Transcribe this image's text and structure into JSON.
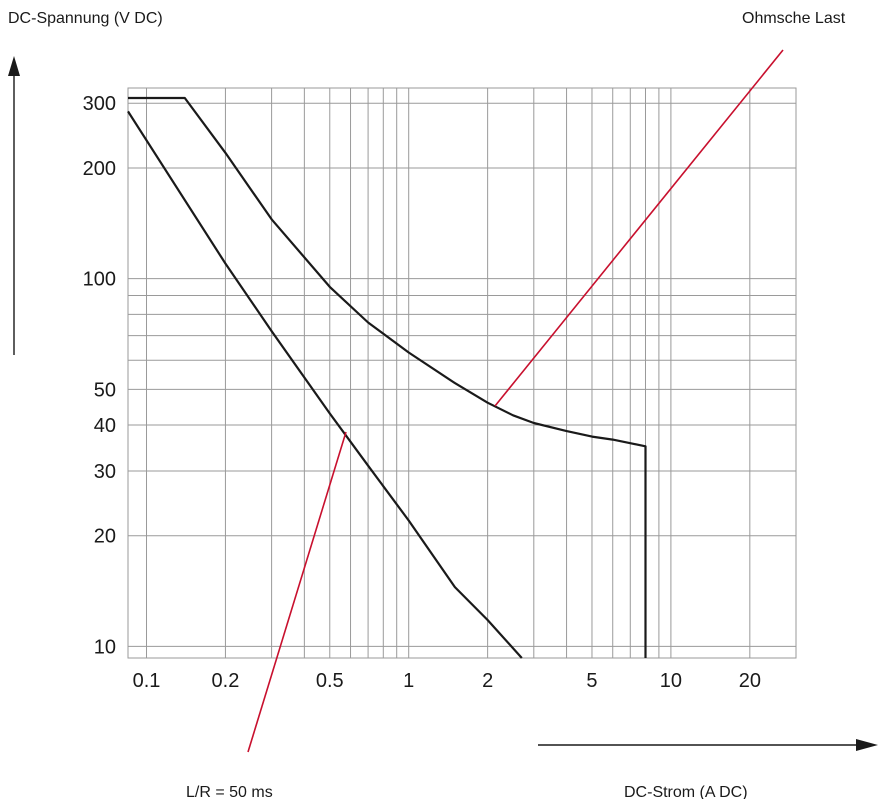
{
  "chart_data": {
    "type": "line",
    "xscale": "log",
    "yscale": "log",
    "xlim": [
      0.085,
      30
    ],
    "ylim": [
      9.3,
      330
    ],
    "ylabel": "DC-Spannung (V DC)",
    "xlabel": "DC-Strom (A DC)",
    "x_ticks": [
      {
        "value": 0.1,
        "label": "0.1"
      },
      {
        "value": 0.2,
        "label": "0.2"
      },
      {
        "value": 0.5,
        "label": "0.5"
      },
      {
        "value": 1,
        "label": "1"
      },
      {
        "value": 2,
        "label": "2"
      },
      {
        "value": 5,
        "label": "5"
      },
      {
        "value": 10,
        "label": "10"
      },
      {
        "value": 20,
        "label": "20"
      }
    ],
    "y_ticks": [
      {
        "value": 10,
        "label": "10"
      },
      {
        "value": 20,
        "label": "20"
      },
      {
        "value": 30,
        "label": "30"
      },
      {
        "value": 40,
        "label": "40"
      },
      {
        "value": 50,
        "label": "50"
      },
      {
        "value": 100,
        "label": "100"
      },
      {
        "value": 200,
        "label": "200"
      },
      {
        "value": 300,
        "label": "300"
      }
    ],
    "grid": true,
    "x_grid": [
      0.1,
      0.2,
      0.3,
      0.4,
      0.5,
      0.6,
      0.7,
      0.8,
      0.9,
      1,
      2,
      3,
      4,
      5,
      6,
      7,
      8,
      9,
      10,
      20
    ],
    "y_grid": [
      10,
      20,
      30,
      40,
      50,
      60,
      70,
      80,
      90,
      100,
      200,
      300
    ],
    "series": [
      {
        "name": "Ohmsche Last",
        "points": [
          [
            0.085,
            310
          ],
          [
            0.14,
            310
          ],
          [
            0.2,
            220
          ],
          [
            0.3,
            145
          ],
          [
            0.5,
            95
          ],
          [
            0.7,
            76
          ],
          [
            1,
            63
          ],
          [
            1.5,
            52
          ],
          [
            2,
            46
          ],
          [
            2.5,
            42.5
          ],
          [
            3,
            40.5
          ],
          [
            4,
            38.5
          ],
          [
            5,
            37.2
          ],
          [
            6,
            36.5
          ],
          [
            7,
            35.7
          ],
          [
            8,
            35
          ],
          [
            8,
            9.3
          ]
        ]
      },
      {
        "name": "L/R = 50 ms",
        "points": [
          [
            0.085,
            285
          ],
          [
            0.2,
            110
          ],
          [
            0.3,
            72
          ],
          [
            0.5,
            43
          ],
          [
            0.7,
            31
          ],
          [
            1,
            22
          ],
          [
            1.5,
            14.5
          ],
          [
            2,
            11.8
          ],
          [
            2.7,
            9.3
          ]
        ]
      }
    ],
    "annotations": [
      {
        "text": "Ohmsche Last",
        "points_to": "Ohmsche Last"
      },
      {
        "text": "L/R = 50 ms",
        "points_to": "L/R = 50 ms"
      }
    ],
    "colors": {
      "curve": "#1a1a1a",
      "grid": "#9a9a9a",
      "leader": "#c8102e"
    }
  }
}
